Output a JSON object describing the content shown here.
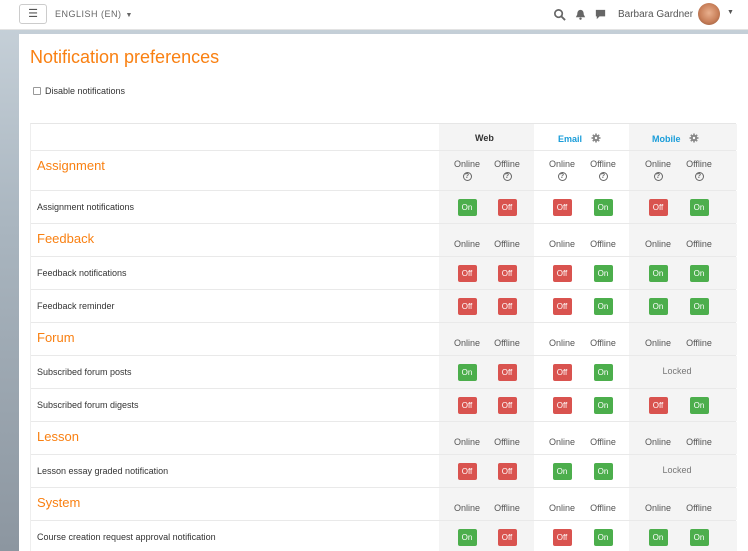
{
  "navbar": {
    "menu_glyph": "☰",
    "language": "ENGLISH (EN)",
    "username": "Barbara Gardner",
    "icons": [
      "search-icon",
      "bell-icon",
      "message-icon",
      "avatar"
    ]
  },
  "page": {
    "title": "Notification preferences",
    "disable_label": "Disable notifications"
  },
  "columns": {
    "web": "Web",
    "email": "Email",
    "mobile": "Mobile",
    "online": "Online",
    "offline": "Offline",
    "help_glyph": "?"
  },
  "colors": {
    "brand": "#f98012",
    "link": "#1a9dd9",
    "on": "#4cae4c",
    "off": "#d9534f"
  },
  "groups": [
    {
      "title": "Assignment",
      "show_help": true,
      "items": [
        {
          "label": "Assignment notifications",
          "values": [
            "On",
            "Off",
            "Off",
            "On",
            "Off",
            "On"
          ]
        }
      ]
    },
    {
      "title": "Feedback",
      "show_help": false,
      "items": [
        {
          "label": "Feedback notifications",
          "values": [
            "Off",
            "Off",
            "Off",
            "On",
            "On",
            "On"
          ]
        },
        {
          "label": "Feedback reminder",
          "values": [
            "Off",
            "Off",
            "Off",
            "On",
            "On",
            "On"
          ]
        }
      ]
    },
    {
      "title": "Forum",
      "show_help": false,
      "items": [
        {
          "label": "Subscribed forum posts",
          "values": [
            "On",
            "Off",
            "Off",
            "On"
          ],
          "mobile_locked": "Locked"
        },
        {
          "label": "Subscribed forum digests",
          "values": [
            "Off",
            "Off",
            "Off",
            "On",
            "Off",
            "On"
          ]
        }
      ]
    },
    {
      "title": "Lesson",
      "show_help": false,
      "items": [
        {
          "label": "Lesson essay graded notification",
          "values": [
            "Off",
            "Off",
            "On",
            "On"
          ],
          "mobile_locked": "Locked"
        }
      ]
    },
    {
      "title": "System",
      "show_help": false,
      "items": [
        {
          "label": "Course creation request approval notification",
          "values": [
            "On",
            "Off",
            "Off",
            "On",
            "On",
            "On"
          ]
        }
      ]
    }
  ]
}
